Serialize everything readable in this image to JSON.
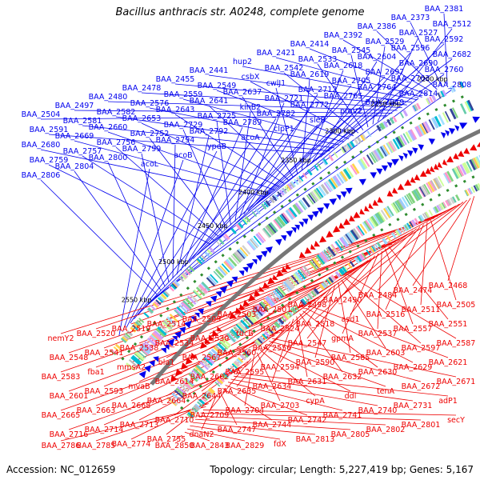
{
  "title": "Bacillus anthracis str. A0248, complete genome",
  "accession_text": "Accession: NC_012659",
  "summary_text": "Topology: circular; Length: 5,227,419 bp; Genes: 5,167",
  "colors": {
    "plus_strand": "#0000ee",
    "minus_strand": "#ee0000",
    "ticks": "#2e8b2e",
    "backbone": "#777777"
  },
  "kbp_ticks": [
    "2200 kbp",
    "2250 kbp",
    "2300 kbp",
    "2350 kbp",
    "2400 kbp",
    "2450 kbp",
    "2500 kbp",
    "2550 kbp"
  ],
  "plus_genes": [
    "BAA_2381",
    "BAA_2373",
    "BAA_2386",
    "BAA_2392",
    "BAA_2414",
    "BAA_2421",
    "hup2",
    "BAA_2441",
    "BAA_2455",
    "BAA_2478",
    "BAA_2480",
    "BAA_2497",
    "BAA_2504",
    "BAA_2512",
    "BAA_2527",
    "BAA_2529",
    "BAA_2545",
    "BAA_2533",
    "BAA_2542",
    "csbX",
    "BAA_2549",
    "BAA_2559",
    "BAA_2576",
    "BAA_2582",
    "BAA_2581",
    "BAA_2591",
    "BAA_2592",
    "BAA_2596",
    "BAA_2604",
    "BAA_2618",
    "BAA_2619",
    "cwlJ1",
    "BAA_2637",
    "BAA_2641",
    "BAA_2643",
    "BAA_2653",
    "BAA_2660",
    "BAA_2669",
    "BAA_2680",
    "BAA_2682",
    "BAA_2690",
    "BAA_2697",
    "BAA_2705",
    "BAA_2712",
    "BAA_2721",
    "kinB2",
    "BAA_2725",
    "BAA_2729",
    "BAA_2752",
    "BAA_2756",
    "BAA_2757",
    "BAA_2759",
    "BAA_2760",
    "BAA_2763",
    "BAA_2764",
    "BAA_2765",
    "BAA_2772",
    "BAA_2782",
    "BAA_2789",
    "BAA_2792",
    "BAA_2794",
    "BAA_2799",
    "BAA_2800",
    "BAA_2804",
    "BAA_2806",
    "BAA_2808",
    "BAA_2814",
    "BAA_2819",
    "proV2",
    "sleB",
    "clpP1",
    "acoA",
    "ypeB",
    "acoB",
    "acoL"
  ],
  "minus_genes": [
    "BAA_2468",
    "BAA_2474",
    "BAA_2484",
    "BAA_2490",
    "BAA_2498",
    "BAA_2501",
    "BAA_2503",
    "BAA_2509",
    "BAA_2514",
    "BAA_2519",
    "BAA_2520",
    "nemY2",
    "BAA_2505",
    "BAA_2511",
    "BAA_2516",
    "asd1",
    "BAA_2518",
    "BAA_2524",
    "tdcB",
    "BAA_2530",
    "BAA_2534",
    "BAA_2538",
    "BAA_2541",
    "BAA_2548",
    "BAA_2551",
    "BAA_2557",
    "BAA_2537",
    "gpmA",
    "BAA_2547",
    "BAA_2556",
    "BAA_2560",
    "BAA_2567",
    "bla1",
    "mmsA2",
    "fba1",
    "BAA_2583",
    "BAA_2587",
    "BAA_2597",
    "BAA_2603",
    "BAA_2585",
    "BAA_2590",
    "BAA_2594",
    "BAA_2595",
    "BAA_2602",
    "BAA_2614",
    "mvaB",
    "BAA_2593",
    "BAA_2601",
    "BAA_2621",
    "BAA_2629",
    "BAA_2630",
    "BAA_2632",
    "BAA_2631",
    "BAA_2634",
    "BAA_2635",
    "BAA_2644",
    "BAA_2664",
    "BAA_2668",
    "BAA_2663",
    "BAA_2665",
    "BAA_2671",
    "BAA_2672",
    "tenA",
    "ddl",
    "cypA",
    "BAA_2703",
    "BAA_2704",
    "BAA_2709",
    "BAA_2710",
    "BAA_2713",
    "BAA_2714",
    "BAA_2716",
    "adP1",
    "BAA_2731",
    "BAA_2740",
    "BAA_2741",
    "BAA_2742",
    "BAA_2744",
    "BAA_2747",
    "dnaN2",
    "BAA_2755",
    "BAA_2774",
    "BAA_2785",
    "BAA_2786",
    "secY",
    "BAA_2801",
    "BAA_2802",
    "BAA_2805",
    "BAA_2813",
    "fdX",
    "BAA_2829",
    "BAA_2843",
    "BAA_2850"
  ]
}
